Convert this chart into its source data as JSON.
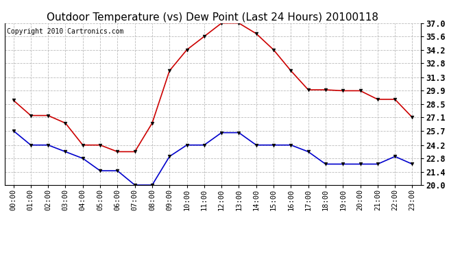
{
  "title": "Outdoor Temperature (vs) Dew Point (Last 24 Hours) 20100118",
  "copyright_text": "Copyright 2010 Cartronics.com",
  "hours": [
    "00:00",
    "01:00",
    "02:00",
    "03:00",
    "04:00",
    "05:00",
    "06:00",
    "07:00",
    "08:00",
    "09:00",
    "10:00",
    "11:00",
    "12:00",
    "13:00",
    "14:00",
    "15:00",
    "16:00",
    "17:00",
    "18:00",
    "19:00",
    "20:00",
    "21:00",
    "22:00",
    "23:00"
  ],
  "temp_red": [
    28.9,
    27.3,
    27.3,
    26.5,
    24.2,
    24.2,
    23.5,
    23.5,
    26.5,
    32.0,
    34.2,
    35.6,
    37.0,
    37.0,
    35.9,
    34.2,
    32.0,
    30.0,
    30.0,
    29.9,
    29.9,
    29.0,
    29.0,
    27.1
  ],
  "dew_blue": [
    25.7,
    24.2,
    24.2,
    23.5,
    22.8,
    21.5,
    21.5,
    20.0,
    20.0,
    23.0,
    24.2,
    24.2,
    25.5,
    25.5,
    24.2,
    24.2,
    24.2,
    23.5,
    22.2,
    22.2,
    22.2,
    22.2,
    23.0,
    22.2
  ],
  "ylim_min": 20.0,
  "ylim_max": 37.0,
  "yticks": [
    20.0,
    21.4,
    22.8,
    24.2,
    25.7,
    27.1,
    28.5,
    29.9,
    31.3,
    32.8,
    34.2,
    35.6,
    37.0
  ],
  "bg_color": "#ffffff",
  "plot_bg_color": "#ffffff",
  "grid_color": "#aaaaaa",
  "red_color": "#cc0000",
  "blue_color": "#0000cc",
  "title_fontsize": 11,
  "copyright_fontsize": 7,
  "tick_fontsize": 7.5,
  "ytick_fontsize": 8.5
}
